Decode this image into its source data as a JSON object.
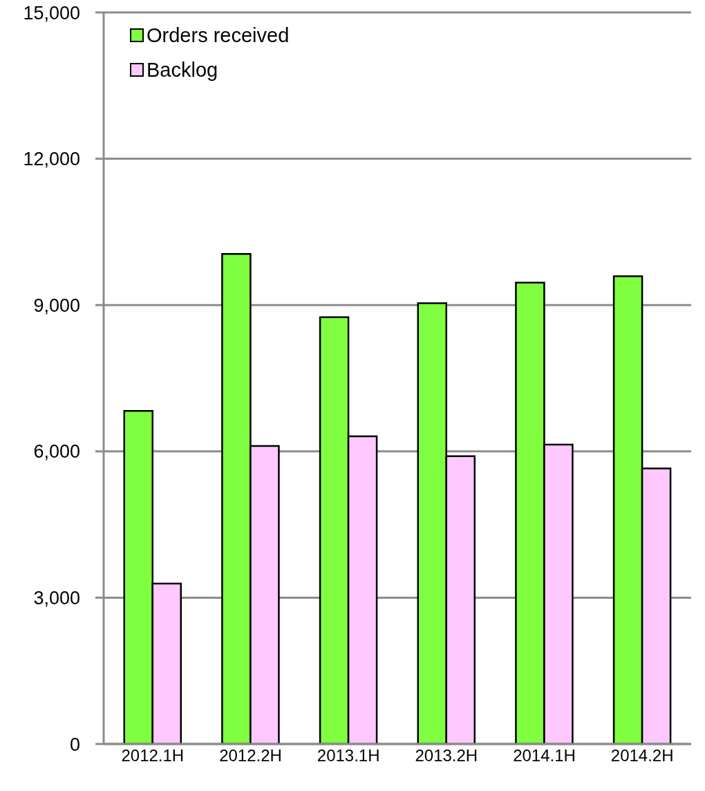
{
  "chart_data": {
    "type": "bar",
    "categories": [
      "2012.1H",
      "2012.2H",
      "2013.1H",
      "2013.2H",
      "2014.1H",
      "2014.2H"
    ],
    "series": [
      {
        "name": "Orders received",
        "color": "#80ff40",
        "values": [
          6830,
          10050,
          8750,
          9040,
          9460,
          9590
        ]
      },
      {
        "name": "Backlog",
        "color": "#ffc8ff",
        "values": [
          3290,
          6110,
          6310,
          5900,
          6140,
          5650
        ]
      }
    ],
    "ylim": [
      0,
      15000
    ],
    "yticks": [
      {
        "value": 0,
        "label": "0"
      },
      {
        "value": 3000,
        "label": "3,000"
      },
      {
        "value": 6000,
        "label": "6,000"
      },
      {
        "value": 9000,
        "label": "9,000"
      },
      {
        "value": 12000,
        "label": "12,000"
      },
      {
        "value": 15000,
        "label": "15,000"
      }
    ],
    "grid": "y",
    "legend": "top left"
  }
}
